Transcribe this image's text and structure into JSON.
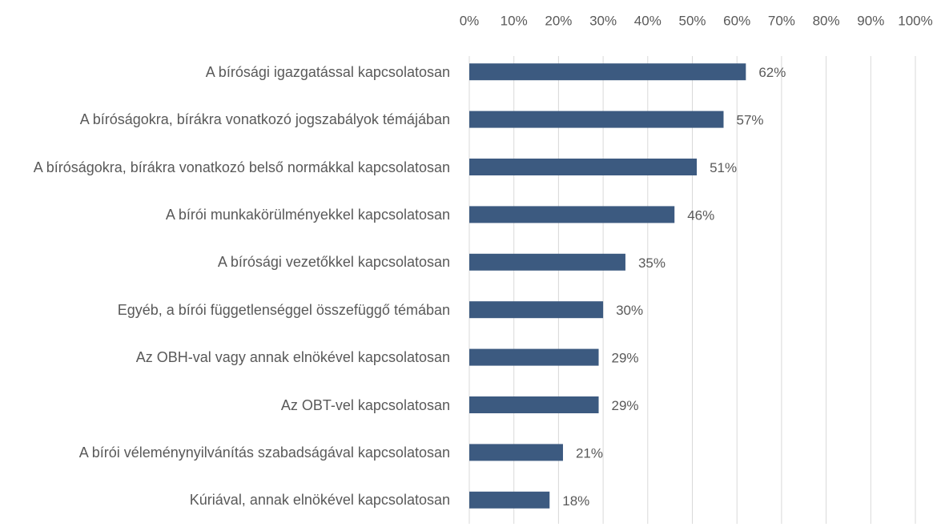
{
  "chart_data": {
    "type": "barh",
    "categories": [
      "A bírósági igazgatással kapcsolatosan",
      "A bíróságokra, bírákra vonatkozó jogszabályok témájában",
      "A bíróságokra, bírákra vonatkozó belső normákkal kapcsolatosan",
      "A bírói munkakörülményekkel kapcsolatosan",
      "A bírósági vezetőkkel kapcsolatosan",
      "Egyéb, a bírói függetlenséggel összefüggő témában",
      "Az OBH-val vagy annak elnökével kapcsolatosan",
      "Az OBT-vel kapcsolatosan",
      "A bírói véleménynyilvánítás szabadságával kapcsolatosan",
      "Kúriával, annak elnökével kapcsolatosan"
    ],
    "values": [
      62,
      57,
      51,
      46,
      35,
      30,
      29,
      29,
      21,
      18
    ],
    "value_labels": [
      "62%",
      "57%",
      "51%",
      "46%",
      "35%",
      "30%",
      "29%",
      "29%",
      "21%",
      "18%"
    ],
    "color": "#3c5a80",
    "xlim": [
      0,
      100
    ],
    "xticks": [
      {
        "value": 0,
        "label": "0%"
      },
      {
        "value": 10,
        "label": "10%"
      },
      {
        "value": 20,
        "label": "20%"
      },
      {
        "value": 30,
        "label": "30%"
      },
      {
        "value": 40,
        "label": "40%"
      },
      {
        "value": 50,
        "label": "50%"
      },
      {
        "value": 60,
        "label": "60%"
      },
      {
        "value": 70,
        "label": "70%"
      },
      {
        "value": 80,
        "label": "80%"
      },
      {
        "value": 90,
        "label": "90%"
      },
      {
        "value": 100,
        "label": "100%"
      }
    ],
    "grid": true
  }
}
